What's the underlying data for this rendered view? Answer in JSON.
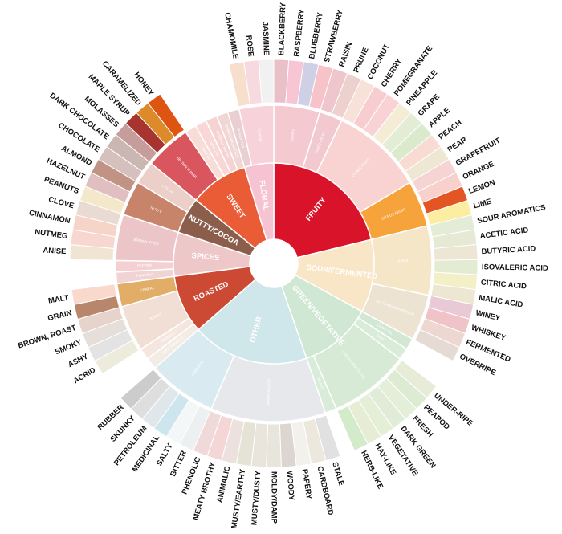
{
  "chart_data": {
    "type": "sunburst",
    "title": "",
    "categories": [
      {
        "name": "FRUITY",
        "color": "#d9142a",
        "subs": [
          {
            "name": "BERRY",
            "color": "#f5c9d0",
            "flavors": [
              {
                "name": "BLACKBERRY",
                "color": "#e9c0c8"
              },
              {
                "name": "RASPBERRY",
                "color": "#f7c5d4"
              },
              {
                "name": "BLUEBERRY",
                "color": "#cfd0e6"
              },
              {
                "name": "STRAWBERRY",
                "color": "#f7c3c8"
              }
            ]
          },
          {
            "name": "DRIED FRUIT",
            "color": "#f2c9ce",
            "flavors": [
              {
                "name": "RAISIN",
                "color": "#efc6cc"
              },
              {
                "name": "PRUNE",
                "color": "#edd1cf"
              }
            ]
          },
          {
            "name": "OTHER FRUIT",
            "color": "#f8d3d2",
            "flavors": [
              {
                "name": "COCONUT",
                "color": "#f7e1d9"
              },
              {
                "name": "CHERRY",
                "color": "#f8cdcf"
              },
              {
                "name": "POMEGRANATE",
                "color": "#f8d2d4"
              },
              {
                "name": "PINEAPPLE",
                "color": "#f5ecd6"
              },
              {
                "name": "GRAPE",
                "color": "#e3ecd4"
              },
              {
                "name": "APPLE",
                "color": "#dbeacd"
              },
              {
                "name": "PEACH",
                "color": "#f8dcd3"
              },
              {
                "name": "PEAR",
                "color": "#eee7d3"
              }
            ]
          },
          {
            "name": "CITRUS FRUIT",
            "color": "#f7a33c",
            "flavors": [
              {
                "name": "GRAPEFRUIT",
                "color": "#f7d4d4"
              },
              {
                "name": "ORANGE",
                "color": "#f8d0cc"
              },
              {
                "name": "LEMON",
                "color": "#e45524"
              },
              {
                "name": "LIME",
                "color": "#fbeea0"
              }
            ]
          }
        ]
      },
      {
        "name": "SOUR/FERMENTED",
        "color": "#f8e6c6",
        "subs": [
          {
            "name": "SOUR",
            "color": "#f6e6c8",
            "flavors": [
              {
                "name": "SOUR AROMATICS",
                "color": "#e4ecd7"
              },
              {
                "name": "ACETIC ACID",
                "color": "#e6ead5"
              },
              {
                "name": "BUTYRIC ACID",
                "color": "#ede6d5"
              },
              {
                "name": "ISOVALERIC ACID",
                "color": "#e3ebd2"
              },
              {
                "name": "CITRIC ACID",
                "color": "#f3f0c8"
              },
              {
                "name": "MALIC ACID",
                "color": "#ece6d2"
              }
            ]
          },
          {
            "name": "ALCOHOL/FERMENTED",
            "color": "#ede3d2",
            "flavors": [
              {
                "name": "WINEY",
                "color": "#e9c9d6"
              },
              {
                "name": "WHISKEY",
                "color": "#f0c3c8"
              },
              {
                "name": "FERMENTED",
                "color": "#edd7d1"
              },
              {
                "name": "OVERRIPE",
                "color": "#e6dbd4"
              }
            ]
          }
        ]
      },
      {
        "name": "GREEN/VEGETATIVE",
        "color": "#cfe7d3",
        "subs": [
          {
            "name": "OLIVE OIL",
            "color": "#d3e8d4",
            "flavors": []
          },
          {
            "name": "RAW",
            "color": "#d8ecd8",
            "flavors": []
          },
          {
            "name": "GREEN/VEGETATIVE",
            "color": "#d6ead5",
            "flavors": [
              {
                "name": "UNDER-RIPE",
                "color": "#e7ecd8"
              },
              {
                "name": "PEAPOD",
                "color": "#dcebd1"
              },
              {
                "name": "FRESH",
                "color": "#e3efd8"
              },
              {
                "name": "DARK GREEN",
                "color": "#e0ecd8"
              },
              {
                "name": "VEGETATIVE",
                "color": "#e5efd8"
              },
              {
                "name": "HAY-LIKE",
                "color": "#e7ecd4"
              },
              {
                "name": "HERB-LIKE",
                "color": "#d4ebcb"
              }
            ]
          },
          {
            "name": "BEANY",
            "color": "#d9ecd9",
            "flavors": []
          }
        ]
      },
      {
        "name": "OTHER",
        "color": "#cfe6ea",
        "subs": [
          {
            "name": "PAPERY/MUSTY",
            "color": "#e6e8ec",
            "flavors": [
              {
                "name": "STALE",
                "color": "#e1e1e1"
              },
              {
                "name": "CARDBOARD",
                "color": "#ece8de"
              },
              {
                "name": "PAPERY",
                "color": "#f3f1ec"
              },
              {
                "name": "WOODY",
                "color": "#ddd5cf"
              },
              {
                "name": "MOLDY/DAMP",
                "color": "#e8e6dc"
              },
              {
                "name": "MUSTY/DUSTY",
                "color": "#e9e5dc"
              },
              {
                "name": "MUSTY/EARTHY",
                "color": "#e5e3d6"
              },
              {
                "name": "ANIMALIC",
                "color": "#ede1de"
              },
              {
                "name": "MEATY BROTHY",
                "color": "#f5d6d6"
              },
              {
                "name": "PHENOLIC",
                "color": "#f0d9d9"
              }
            ]
          },
          {
            "name": "CHEMICAL",
            "color": "#d9ebf0",
            "flavors": [
              {
                "name": "BITTER",
                "color": "#edf0f0"
              },
              {
                "name": "SALTY",
                "color": "#f4f7f8"
              },
              {
                "name": "MEDICINAL",
                "color": "#cde6ee"
              },
              {
                "name": "PETROLEUM",
                "color": "#dfe7eb"
              },
              {
                "name": "SKUNKY",
                "color": "#dedede"
              },
              {
                "name": "RUBBER",
                "color": "#cccccc"
              }
            ]
          }
        ]
      },
      {
        "name": "ROASTED",
        "color": "#cc4a33",
        "subs": [
          {
            "name": "PIPE TOBACCO",
            "color": "#f3ebe4",
            "flavors": []
          },
          {
            "name": "TOBACCO",
            "color": "#f5e7df",
            "flavors": []
          },
          {
            "name": "BURNT",
            "color": "#f1dfd6",
            "flavors": [
              {
                "name": "ACRID",
                "color": "#ecebdc"
              },
              {
                "name": "ASHY",
                "color": "#e3e3e3"
              },
              {
                "name": "SMOKY",
                "color": "#e6ded9"
              },
              {
                "name": "BROWN, ROAST",
                "color": "#e6d3cb"
              }
            ]
          },
          {
            "name": "CEREAL",
            "color": "#e2ad66",
            "flavors": [
              {
                "name": "GRAIN",
                "color": "#b8876b"
              },
              {
                "name": "MALT",
                "color": "#f8d9cc"
              }
            ]
          }
        ]
      },
      {
        "name": "SPICES",
        "color": "#eec7c9",
        "subs": [
          {
            "name": "PUNGENT",
            "color": "#f0d4d4",
            "flavors": []
          },
          {
            "name": "PEPPER",
            "color": "#f4d0d0",
            "flavors": []
          },
          {
            "name": "BROWN SPICE",
            "color": "#ebc5c8",
            "flavors": [
              {
                "name": "ANISE",
                "color": "#f0e5d3"
              },
              {
                "name": "NUTMEG",
                "color": "#f7d7cf"
              },
              {
                "name": "CINNAMON",
                "color": "#f7d4c8"
              },
              {
                "name": "CLOVE",
                "color": "#eadad4"
              }
            ]
          }
        ]
      },
      {
        "name": "NUTTY/COCOA",
        "color": "#8b5e4c",
        "subs": [
          {
            "name": "NUTTY",
            "color": "#c8836b",
            "flavors": [
              {
                "name": "PEANUTS",
                "color": "#f3e8c9"
              },
              {
                "name": "HAZELNUT",
                "color": "#e1bfc0"
              },
              {
                "name": "ALMOND",
                "color": "#c09385"
              }
            ]
          },
          {
            "name": "COCOA",
            "color": "#ebcfc8",
            "flavors": [
              {
                "name": "CHOCOLATE",
                "color": "#d5c0bd"
              },
              {
                "name": "DARK CHOCOLATE",
                "color": "#cbb7b1"
              }
            ]
          }
        ]
      },
      {
        "name": "SWEET",
        "color": "#e95c36",
        "subs": [
          {
            "name": "BROWN SUGAR",
            "color": "#d9565f",
            "flavors": [
              {
                "name": "MOLASSES",
                "color": "#c69d9b"
              },
              {
                "name": "MAPLE SYRUP",
                "color": "#a7342e"
              },
              {
                "name": "CARAMELIZED",
                "color": "#dc8a2a"
              },
              {
                "name": "HONEY",
                "color": "#de5411"
              }
            ]
          },
          {
            "name": "VANILLA",
            "color": "#f8dcd7",
            "flavors": []
          },
          {
            "name": "VANILLIN",
            "color": "#f8d7d6",
            "flavors": []
          },
          {
            "name": "OVERALL SWEET",
            "color": "#f5d3d2",
            "flavors": []
          },
          {
            "name": "SWEET AROMATICS",
            "color": "#f2d6d6",
            "flavors": []
          }
        ]
      },
      {
        "name": "FLORAL",
        "color": "#f6c3d2",
        "subs": [
          {
            "name": "BLACK TEA",
            "color": "#e9cfd1",
            "flavors": []
          },
          {
            "name": "FLORAL",
            "color": "#f8d2db",
            "flavors": [
              {
                "name": "CHAMOMILE",
                "color": "#f8dfcd"
              },
              {
                "name": "ROSE",
                "color": "#f7d9e0"
              },
              {
                "name": "JASMINE",
                "color": "#f1f1f1"
              }
            ]
          }
        ]
      }
    ]
  }
}
